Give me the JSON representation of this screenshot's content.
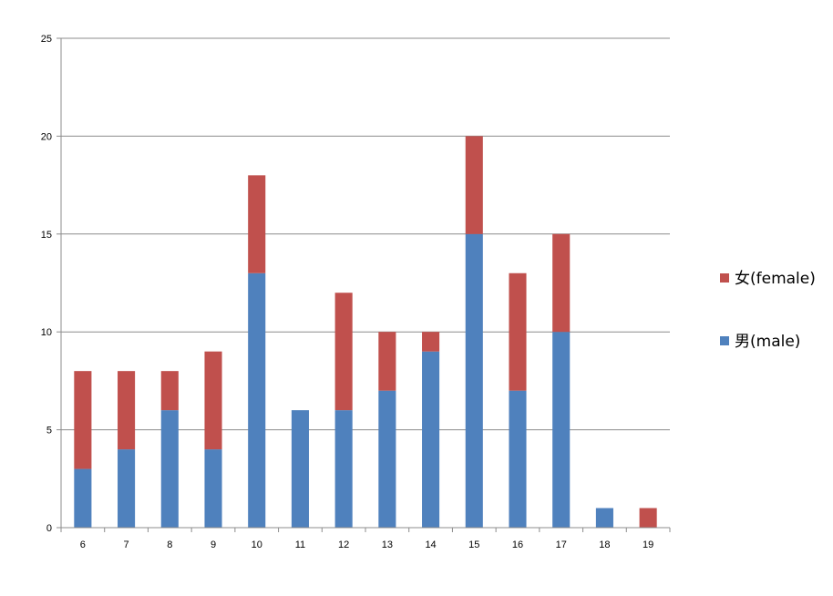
{
  "chart_data": {
    "type": "bar",
    "stacked": true,
    "categories": [
      "6",
      "7",
      "8",
      "9",
      "10",
      "11",
      "12",
      "13",
      "14",
      "15",
      "16",
      "17",
      "18",
      "19"
    ],
    "series": [
      {
        "name": "男(male)",
        "color": "#4F81BD",
        "values": [
          3,
          4,
          6,
          4,
          13,
          6,
          6,
          7,
          9,
          15,
          7,
          10,
          1,
          0
        ]
      },
      {
        "name": "女(female)",
        "color": "#C0504D",
        "values": [
          5,
          4,
          2,
          5,
          5,
          0,
          6,
          3,
          1,
          5,
          6,
          5,
          0,
          1
        ]
      }
    ],
    "yticks": [
      "0",
      "5",
      "10",
      "15",
      "20",
      "25"
    ],
    "ylim": [
      0,
      25
    ],
    "grid": true,
    "legend_position": "right",
    "legend_order": [
      "女(female)",
      "男(male)"
    ]
  }
}
